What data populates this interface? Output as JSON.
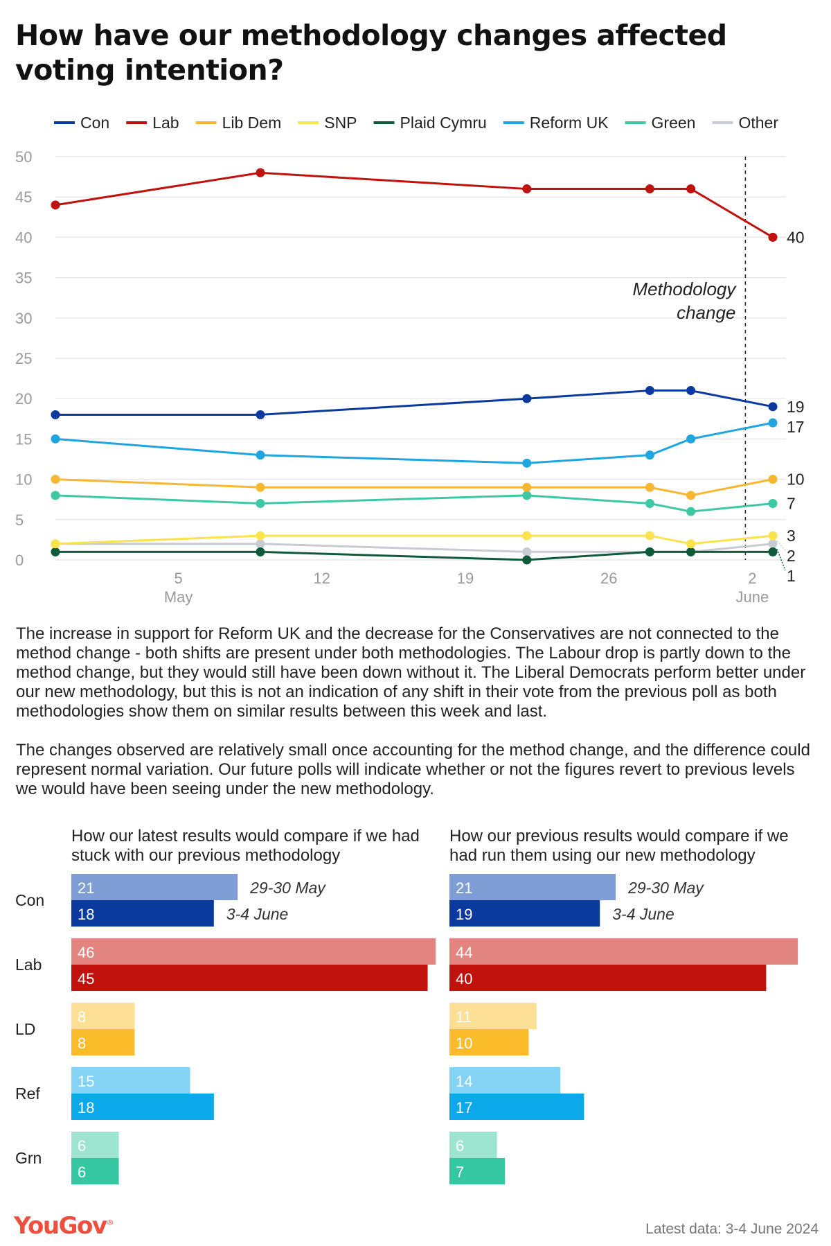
{
  "title": "How have our methodology changes affected voting intention?",
  "paragraphs": [
    "The increase in support for Reform UK and the decrease for the Conservatives are not connected to the method change - both shifts are present under both methodologies. The Labour drop is partly down to the method change, but they would still have been down without it. The Liberal Democrats perform better under our new methodology, but this is not an indication of any shift in their vote from the previous poll as both methodologies show them on similar results between this week and last.",
    "The changes observed are relatively small once accounting for the method change, and the difference could represent normal variation. Our future polls will indicate whether or not the figures revert to previous levels we would have been seeing under the new methodology."
  ],
  "subtitles": {
    "left": "How our latest results would compare if we had stuck with our previous methodology",
    "right": "How our previous results would compare if we had run them using our new methodology"
  },
  "brand": {
    "logo": "YouGov",
    "logo_mark": "®",
    "footer": "Latest data: 3-4 June 2024",
    "logo_color": "#f04e3e"
  },
  "chart_data": [
    {
      "type": "line",
      "x_dates": [
        "2024-04-29",
        "2024-05-09",
        "2024-05-22",
        "2024-05-28",
        "2024-05-30",
        "2024-06-03"
      ],
      "x_ticks": [
        {
          "date": "2024-05-05",
          "label": "5",
          "sublabel": "May"
        },
        {
          "date": "2024-05-12",
          "label": "12",
          "sublabel": ""
        },
        {
          "date": "2024-05-19",
          "label": "19",
          "sublabel": ""
        },
        {
          "date": "2024-05-26",
          "label": "26",
          "sublabel": ""
        },
        {
          "date": "2024-06-02",
          "label": "2",
          "sublabel": "June"
        }
      ],
      "ylim": [
        0,
        50
      ],
      "y_ticks": [
        0,
        5,
        10,
        15,
        20,
        25,
        30,
        35,
        40,
        45,
        50
      ],
      "grid": true,
      "legend_position": "top",
      "annotation": {
        "text_lines": [
          "Methodology",
          "change"
        ],
        "date": "2024-06-02"
      },
      "series": [
        {
          "name": "Con",
          "color": "#0b3a9e",
          "values": [
            18,
            18,
            20,
            21,
            21,
            19
          ],
          "end_label": "19"
        },
        {
          "name": "Lab",
          "color": "#c0110c",
          "values": [
            44,
            48,
            46,
            46,
            46,
            40
          ],
          "end_label": "40"
        },
        {
          "name": "Lib Dem",
          "color": "#f7b731",
          "values": [
            10,
            9,
            9,
            9,
            8,
            10
          ],
          "end_label": "10"
        },
        {
          "name": "SNP",
          "color": "#fbe34b",
          "values": [
            2,
            3,
            3,
            3,
            2,
            3
          ],
          "end_label": "3"
        },
        {
          "name": "Plaid Cymru",
          "color": "#0e5a3a",
          "values": [
            1,
            1,
            0,
            1,
            1,
            1
          ],
          "end_label": "1"
        },
        {
          "name": "Reform UK",
          "color": "#1fa6e0",
          "values": [
            15,
            13,
            12,
            13,
            15,
            17
          ],
          "end_label": "17"
        },
        {
          "name": "Green",
          "color": "#3dc8a3",
          "values": [
            8,
            7,
            8,
            7,
            6,
            7
          ],
          "end_label": "7"
        },
        {
          "name": "Other",
          "color": "#c9cbd3",
          "values": [
            2,
            2,
            1,
            1,
            1,
            2
          ],
          "end_label": "2"
        }
      ]
    },
    {
      "type": "bar",
      "orientation": "horizontal",
      "categories": [
        "Con",
        "Lab",
        "LD",
        "Ref",
        "Grn"
      ],
      "xlim": [
        0,
        46
      ],
      "series_labels": [
        "29-30 May",
        "3-4 June"
      ],
      "panels": [
        {
          "key": "left",
          "series": [
            {
              "name": "29-30 May",
              "values": [
                21,
                46,
                8,
                15,
                6
              ]
            },
            {
              "name": "3-4 June",
              "values": [
                18,
                45,
                8,
                18,
                6
              ]
            }
          ]
        },
        {
          "key": "right",
          "series": [
            {
              "name": "29-30 May",
              "values": [
                21,
                44,
                11,
                14,
                6
              ]
            },
            {
              "name": "3-4 June",
              "values": [
                19,
                40,
                10,
                17,
                7
              ]
            }
          ]
        }
      ],
      "colors": {
        "Con": [
          "#7f9ed6",
          "#0b3a9e"
        ],
        "Lab": [
          "#e28580",
          "#c0110c"
        ],
        "LD": [
          "#fddf96",
          "#fbbc2c"
        ],
        "Ref": [
          "#84d3f5",
          "#0ba8ea"
        ],
        "Grn": [
          "#9de5d1",
          "#34c7a1"
        ]
      }
    }
  ]
}
